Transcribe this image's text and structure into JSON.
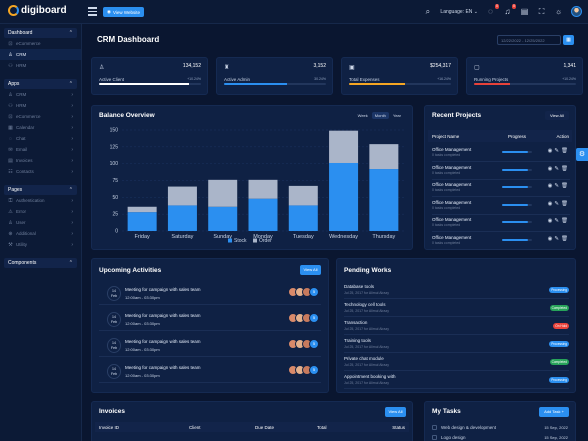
{
  "topbar": {
    "logo": "digiboard",
    "visit_label": "View Website",
    "language_label": "Language: EN",
    "chat_badge": "0",
    "notif_badge": "0"
  },
  "sidebar": {
    "sections": [
      {
        "label": "Dashboard",
        "items": [
          {
            "label": "eCommerce",
            "active": false,
            "icon": "cart-icon"
          },
          {
            "label": "CRM",
            "active": true,
            "icon": "crm-icon"
          },
          {
            "label": "HRM",
            "active": false,
            "icon": "users-icon"
          }
        ]
      },
      {
        "label": "Apps",
        "items": [
          {
            "label": "CRM",
            "icon": "crm-icon"
          },
          {
            "label": "HRM",
            "icon": "users-icon"
          },
          {
            "label": "eCommerce",
            "icon": "cart-icon"
          },
          {
            "label": "Calendar",
            "icon": "calendar-icon"
          },
          {
            "label": "Chat",
            "icon": "chat-icon"
          },
          {
            "label": "Email",
            "icon": "mail-icon"
          },
          {
            "label": "Invoices",
            "icon": "invoice-icon"
          },
          {
            "label": "Contacts",
            "icon": "contact-icon"
          }
        ]
      },
      {
        "label": "Pages",
        "items": [
          {
            "label": "Authentication",
            "icon": "lock-icon"
          },
          {
            "label": "Error",
            "icon": "warning-icon"
          },
          {
            "label": "User",
            "icon": "user-icon"
          },
          {
            "label": "Additional",
            "icon": "plus-icon"
          },
          {
            "label": "Utility",
            "icon": "tool-icon"
          }
        ]
      },
      {
        "label": "Components",
        "items": []
      }
    ]
  },
  "page": {
    "title": "CRM Dashboard",
    "date_range": "12/22/2022 - 12/25/2022"
  },
  "stats": [
    {
      "label": "Active Client",
      "value": "134,152",
      "pct": "+10.24%",
      "fill": 0.88,
      "color": "#ffffff",
      "icon": "user-plus-icon"
    },
    {
      "label": "Active Admin",
      "value": "3,152",
      "pct": "30.24%",
      "fill": 0.62,
      "color": "#2b8ff0",
      "icon": "admin-icon"
    },
    {
      "label": "Total Expenses",
      "value": "$254,317",
      "pct": "+16.24%",
      "fill": 0.55,
      "color": "#f5a623",
      "icon": "money-icon"
    },
    {
      "label": "Running Projects",
      "value": "1,341",
      "pct": "+10.24%",
      "fill": 0.35,
      "color": "#e8423a",
      "icon": "folder-icon"
    }
  ],
  "balance": {
    "title": "Balance Overview",
    "tabs": [
      "Week",
      "Month",
      "Year"
    ],
    "active_tab": "Month"
  },
  "chart_data": {
    "type": "bar",
    "stacked": true,
    "categories": [
      "Friday",
      "Saturday",
      "Sunday",
      "Monday",
      "Tuesday",
      "Wednesday",
      "Thursday"
    ],
    "series": [
      {
        "name": "Stock",
        "color": "#2b8ff0",
        "values": [
          28,
          38,
          36,
          48,
          38,
          101,
          92
        ]
      },
      {
        "name": "Order",
        "color": "#aab5c9",
        "values": [
          8,
          28,
          40,
          28,
          29,
          48,
          37
        ]
      }
    ],
    "ylim": [
      0,
      150
    ],
    "yticks": [
      0,
      25,
      50,
      75,
      100,
      125,
      150
    ],
    "ytick_labels": [
      "0",
      "25",
      "50",
      "75",
      "100",
      "125",
      "150"
    ],
    "grid": true,
    "legend": "bottom"
  },
  "recent_projects": {
    "title": "Recent Projects",
    "view_all": "View All",
    "headers": [
      "Project Name",
      "Progress",
      "Action"
    ],
    "rows": [
      {
        "name": "Office Management",
        "status": "0 tasks completed",
        "progress": 0.85
      },
      {
        "name": "Office Management",
        "status": "0 tasks completed",
        "progress": 0.85
      },
      {
        "name": "Office Management",
        "status": "0 tasks completed",
        "progress": 0.85
      },
      {
        "name": "Office Management",
        "status": "0 tasks completed",
        "progress": 0.85
      },
      {
        "name": "Office Management",
        "status": "0 tasks completed",
        "progress": 0.85
      },
      {
        "name": "Office Management",
        "status": "0 tasks completed",
        "progress": 0.85
      }
    ]
  },
  "activities": {
    "title": "Upcoming Activities",
    "view_all": "View All",
    "items": [
      {
        "day": "14",
        "month": "Feb",
        "title": "Meeting for campaign with sales team",
        "time": "12:00am - 03:30pm",
        "more": "5"
      },
      {
        "day": "14",
        "month": "Feb",
        "title": "Meeting for campaign with sales team",
        "time": "12:00am - 03:30pm",
        "more": "5"
      },
      {
        "day": "14",
        "month": "Feb",
        "title": "Meeting for campaign with sales team",
        "time": "12:00am - 03:30pm",
        "more": "5"
      },
      {
        "day": "14",
        "month": "Feb",
        "title": "Meeting for campaign with sales team",
        "time": "12:00am - 03:30pm",
        "more": "5"
      }
    ]
  },
  "pending": {
    "title": "Pending Works",
    "items": [
      {
        "name": "Database tools",
        "date": "Jul 25, 2017 for Alimul Alrazy",
        "status": "Processing",
        "color": "#2b8ff0"
      },
      {
        "name": "Technology cell tools",
        "date": "Jul 25, 2017 for Alimul Alrazy",
        "status": "Completed",
        "color": "#27a35a"
      },
      {
        "name": "Transaction",
        "date": "Jul 25, 2017 for Alimul Alrazy",
        "status": "On Hold",
        "color": "#e8423a"
      },
      {
        "name": "Training tools",
        "date": "Jul 25, 2017 for Alimul Alrazy",
        "status": "Processing",
        "color": "#2b8ff0"
      },
      {
        "name": "Private chat module",
        "date": "Jul 25, 2017 for Alimul Alrazy",
        "status": "Completed",
        "color": "#27a35a"
      },
      {
        "name": "Appointment booking with",
        "date": "Jul 25, 2017 for Alimul Alrazy",
        "status": "Processing",
        "color": "#2b8ff0"
      }
    ]
  },
  "invoices": {
    "title": "Invoices",
    "view_all": "View All",
    "headers": [
      "Invoice ID",
      "Client",
      "Due Date",
      "Total",
      "Status"
    ]
  },
  "tasks": {
    "title": "My Tasks",
    "add": "Add Task +",
    "items": [
      {
        "name": "Web design & development",
        "date": "15 Sep, 2022"
      },
      {
        "name": "Logo design",
        "date": "15 Sep, 2022"
      }
    ]
  }
}
